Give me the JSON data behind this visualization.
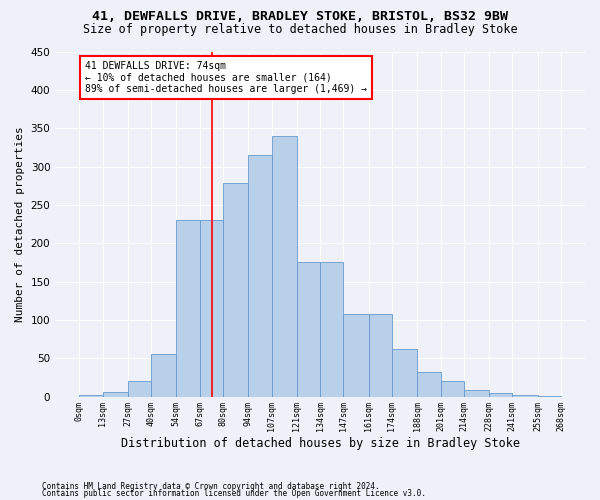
{
  "title1": "41, DEWFALLS DRIVE, BRADLEY STOKE, BRISTOL, BS32 9BW",
  "title2": "Size of property relative to detached houses in Bradley Stoke",
  "xlabel": "Distribution of detached houses by size in Bradley Stoke",
  "ylabel": "Number of detached properties",
  "footnote1": "Contains HM Land Registry data © Crown copyright and database right 2024.",
  "footnote2": "Contains public sector information licensed under the Open Government Licence v3.0.",
  "annotation_title": "41 DEWFALLS DRIVE: 74sqm",
  "annotation_line1": "← 10% of detached houses are smaller (164)",
  "annotation_line2": "89% of semi-detached houses are larger (1,469) →",
  "bin_edges": [
    0,
    13,
    27,
    40,
    54,
    67,
    80,
    94,
    107,
    121,
    134,
    147,
    161,
    174,
    188,
    201,
    214,
    228,
    241,
    255,
    268
  ],
  "bar_heights": [
    2,
    6,
    20,
    55,
    230,
    230,
    278,
    315,
    340,
    175,
    175,
    108,
    108,
    62,
    32,
    20,
    8,
    5,
    2,
    1
  ],
  "bar_color": "#b8d0ea",
  "bar_edge_color": "#6699cc",
  "vline_color": "red",
  "vline_x": 74,
  "ylim": [
    0,
    450
  ],
  "yticks": [
    0,
    50,
    100,
    150,
    200,
    250,
    300,
    350,
    400,
    450
  ],
  "background_color": "#eef2f8",
  "grid_color": "#ffffff",
  "title1_fontsize": 9.5,
  "title2_fontsize": 8.5,
  "xlabel_fontsize": 8.5,
  "ylabel_fontsize": 8,
  "annotation_fontsize": 7,
  "footnote_fontsize": 5.5
}
